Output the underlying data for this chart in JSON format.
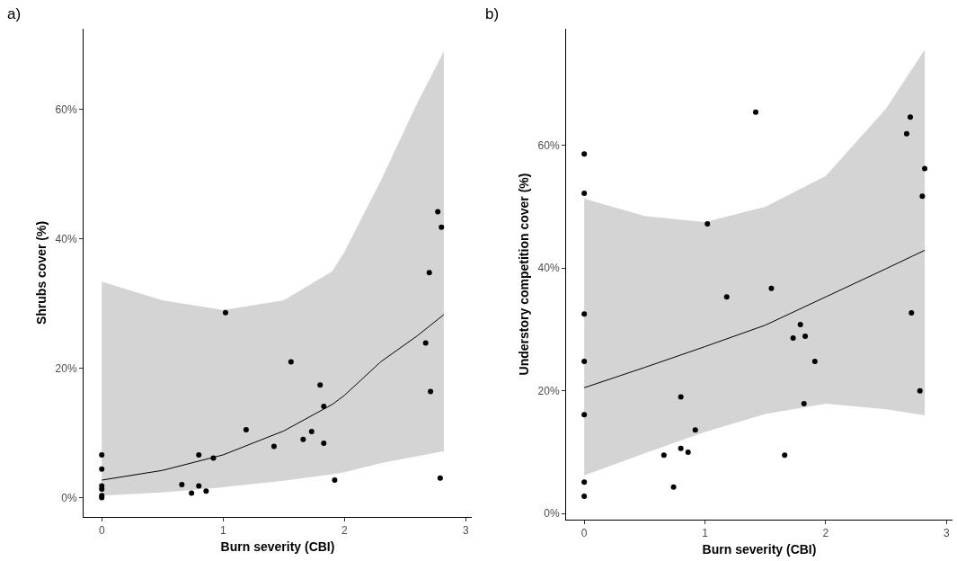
{
  "chart_data": [
    {
      "type": "scatter",
      "title": "a)",
      "xlabel": "Burn severity (CBI)",
      "ylabel": "Shrubs cover (%)",
      "xlim": [
        -0.15,
        3.05
      ],
      "ylim": [
        -3,
        72.5
      ],
      "xticks": [
        0,
        1,
        2,
        3
      ],
      "yticks": [
        {
          "value": 0,
          "label": "0%"
        },
        {
          "value": 20,
          "label": "20%"
        },
        {
          "value": 40,
          "label": "40%"
        },
        {
          "value": 60,
          "label": "60%"
        }
      ],
      "grid": false,
      "line_style": "solid",
      "series": [
        {
          "type": "line",
          "marker": "none",
          "color": "#000000",
          "x": [
            0,
            0.5,
            1,
            1.5,
            1.9,
            2,
            2.3,
            2.6,
            2.82
          ],
          "values": [
            2.7,
            4.2,
            6.6,
            10.3,
            14.4,
            15.8,
            21,
            25,
            28.3
          ],
          "lower": [
            0.3,
            0.8,
            1.6,
            2.6,
            3.6,
            3.9,
            5.3,
            6.4,
            7.2
          ],
          "upper": [
            33.4,
            30.5,
            29,
            30.5,
            35,
            38,
            49,
            61,
            69
          ]
        },
        {
          "marker": "circle",
          "color": "#000000",
          "x": [
            0,
            0,
            0,
            0,
            0,
            0,
            0.66,
            0.74,
            0.8,
            0.8,
            0.86,
            0.92,
            1.02,
            1.19,
            1.42,
            1.56,
            1.66,
            1.73,
            1.8,
            1.83,
            1.83,
            1.92,
            2.67,
            2.71,
            2.79,
            2.7,
            2.77,
            2.8
          ],
          "values": [
            6.6,
            4.4,
            1.8,
            1.3,
            0.3,
            0,
            2,
            0.7,
            1.8,
            6.6,
            1,
            6.1,
            28.6,
            10.5,
            7.9,
            21,
            9,
            10.2,
            17.4,
            14.1,
            8.4,
            2.7,
            23.9,
            16.4,
            3,
            34.8,
            44.2,
            41.8
          ]
        }
      ]
    },
    {
      "type": "scatter",
      "title": "b)",
      "xlabel": "Burn severity (CBI)",
      "ylabel": "Understory competition cover (%)",
      "xlim": [
        -0.15,
        3.05
      ],
      "ylim": [
        -1,
        79
      ],
      "xticks": [
        0,
        1,
        2,
        3
      ],
      "yticks": [
        {
          "value": 0,
          "label": "0%"
        },
        {
          "value": 20,
          "label": "20%"
        },
        {
          "value": 40,
          "label": "40%"
        },
        {
          "value": 60,
          "label": "60%"
        }
      ],
      "grid": false,
      "line_style": "solid",
      "series": [
        {
          "type": "line",
          "marker": "none",
          "color": "#000000",
          "x": [
            0,
            0.5,
            1,
            1.5,
            2,
            2.5,
            2.82
          ],
          "values": [
            20.5,
            23.8,
            27.2,
            30.7,
            35.3,
            39.9,
            42.9
          ],
          "lower": [
            6.2,
            9.8,
            13.3,
            16.2,
            17.9,
            17,
            16
          ],
          "upper": [
            51.3,
            48.5,
            47.5,
            50,
            55,
            66,
            75.6
          ]
        },
        {
          "marker": "circle",
          "color": "#000000",
          "x": [
            0,
            0,
            0,
            0,
            0,
            0,
            0,
            1.42,
            2.7,
            2.67,
            2.82,
            2.8,
            1.02,
            1.55,
            1.18,
            2.71,
            1.79,
            1.83,
            1.73,
            1.91,
            2.78,
            0.8,
            1.82,
            0.92,
            0.8,
            0.86,
            0.66,
            1.66,
            0.74
          ],
          "values": [
            58.6,
            52.2,
            32.5,
            24.8,
            16.1,
            5.1,
            2.8,
            65.4,
            64.6,
            61.9,
            56.2,
            51.7,
            47.2,
            36.7,
            35.3,
            32.7,
            30.8,
            28.9,
            28.6,
            24.8,
            20,
            19,
            17.9,
            13.6,
            10.6,
            10,
            9.5,
            9.5,
            4.3
          ]
        }
      ]
    }
  ]
}
